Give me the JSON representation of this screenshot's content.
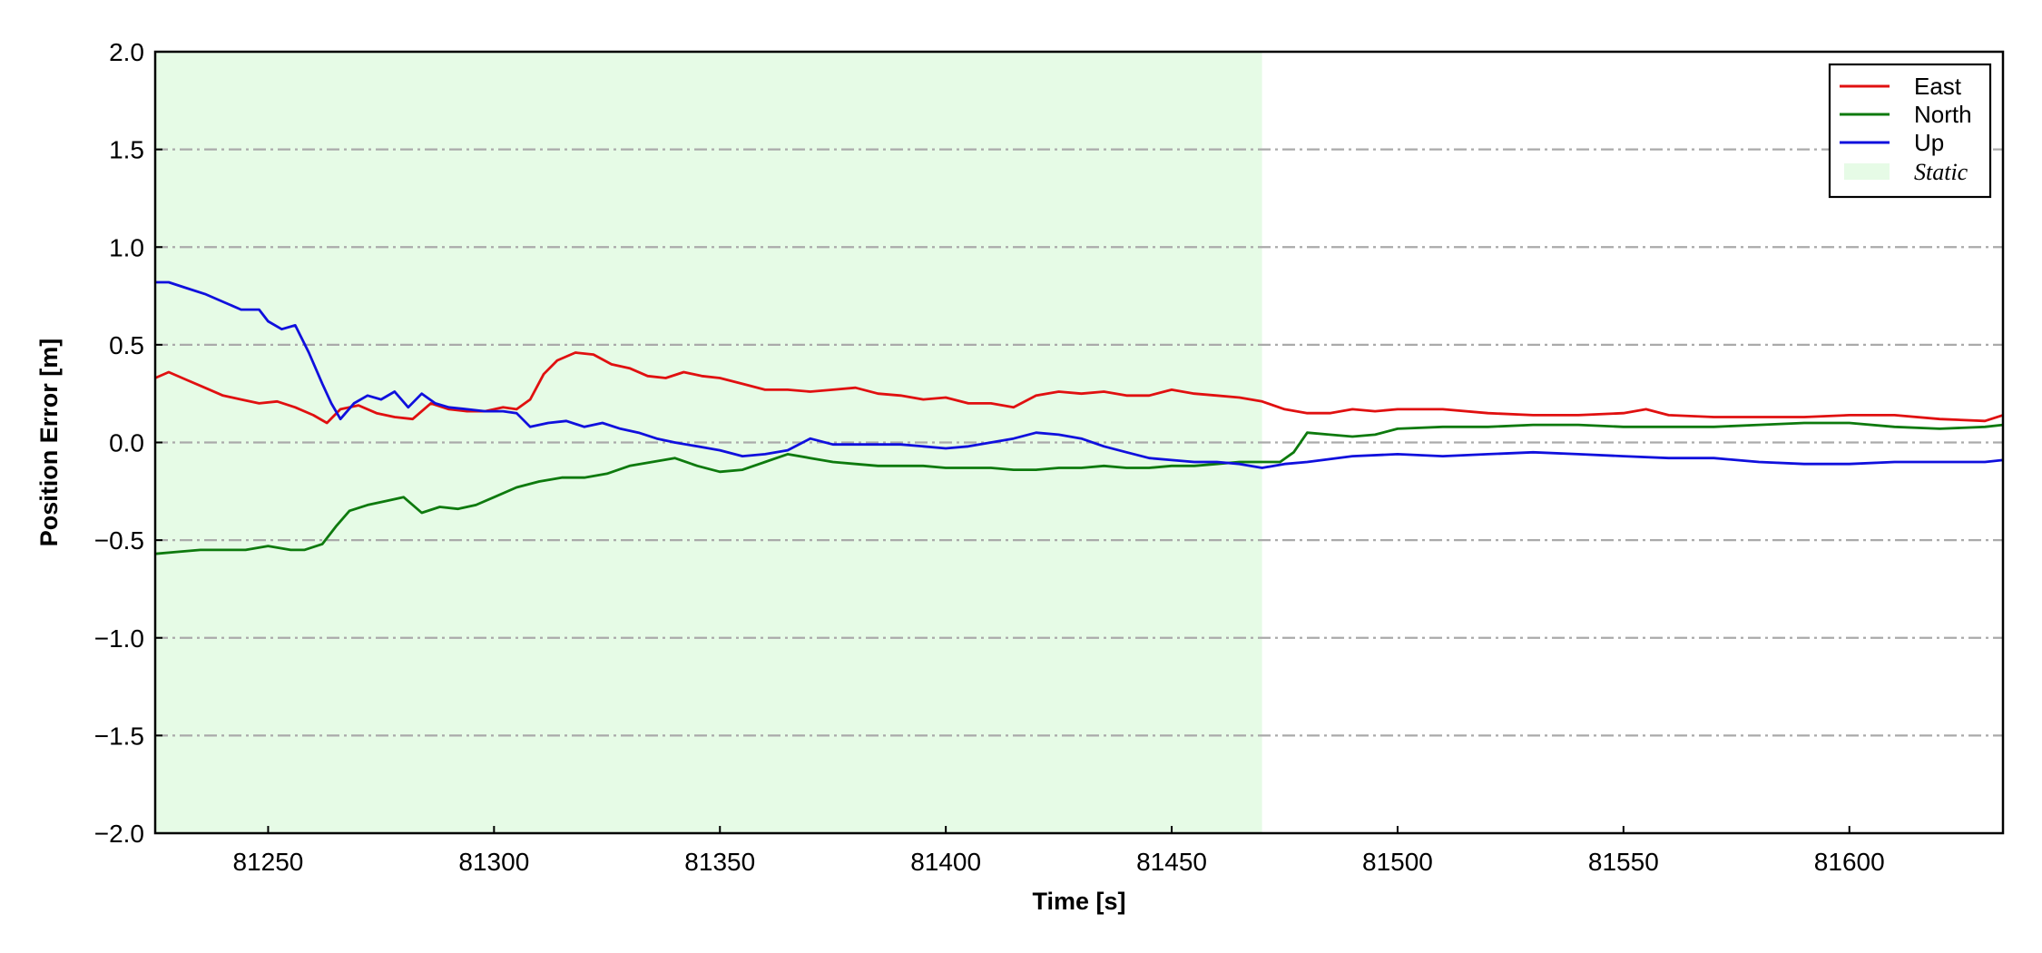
{
  "chart_data": {
    "type": "line",
    "xlabel": "Time [s]",
    "ylabel": "Position Error [m]",
    "xlim": [
      81225,
      81634
    ],
    "ylim": [
      -2.0,
      2.0
    ],
    "x_ticks": [
      81250,
      81300,
      81350,
      81400,
      81450,
      81500,
      81550,
      81600
    ],
    "y_ticks": [
      -2.0,
      -1.5,
      -1.0,
      -0.5,
      0.0,
      0.5,
      1.0,
      1.5,
      2.0
    ],
    "y_tick_labels": [
      "−2.0",
      "−1.5",
      "−1.0",
      "−0.5",
      "0.0",
      "0.5",
      "1.0",
      "1.5",
      "2.0"
    ],
    "grid": "horizontal dash-dot",
    "legend_position": "top-right",
    "static_region": {
      "label": "Static",
      "x_start": 81225,
      "x_end": 81470,
      "color": "#e6fbe6"
    },
    "series": [
      {
        "name": "East",
        "color": "#e01010",
        "x": [
          81225,
          81228,
          81232,
          81236,
          81240,
          81244,
          81248,
          81252,
          81256,
          81260,
          81263,
          81266,
          81270,
          81274,
          81278,
          81282,
          81286,
          81290,
          81294,
          81298,
          81302,
          81305,
          81308,
          81311,
          81314,
          81318,
          81322,
          81326,
          81330,
          81334,
          81338,
          81342,
          81346,
          81350,
          81355,
          81360,
          81365,
          81370,
          81375,
          81380,
          81385,
          81390,
          81395,
          81400,
          81405,
          81410,
          81415,
          81420,
          81425,
          81430,
          81435,
          81440,
          81445,
          81450,
          81455,
          81460,
          81465,
          81470,
          81475,
          81480,
          81485,
          81490,
          81495,
          81500,
          81510,
          81520,
          81530,
          81540,
          81550,
          81555,
          81560,
          81570,
          81580,
          81590,
          81600,
          81610,
          81620,
          81630,
          81634
        ],
        "y": [
          0.33,
          0.36,
          0.32,
          0.28,
          0.24,
          0.22,
          0.2,
          0.21,
          0.18,
          0.14,
          0.1,
          0.17,
          0.19,
          0.15,
          0.13,
          0.12,
          0.2,
          0.17,
          0.16,
          0.16,
          0.18,
          0.17,
          0.22,
          0.35,
          0.42,
          0.46,
          0.45,
          0.4,
          0.38,
          0.34,
          0.33,
          0.36,
          0.34,
          0.33,
          0.3,
          0.27,
          0.27,
          0.26,
          0.27,
          0.28,
          0.25,
          0.24,
          0.22,
          0.23,
          0.2,
          0.2,
          0.18,
          0.24,
          0.26,
          0.25,
          0.26,
          0.24,
          0.24,
          0.27,
          0.25,
          0.24,
          0.23,
          0.21,
          0.17,
          0.15,
          0.15,
          0.17,
          0.16,
          0.17,
          0.17,
          0.15,
          0.14,
          0.14,
          0.15,
          0.17,
          0.14,
          0.13,
          0.13,
          0.13,
          0.14,
          0.14,
          0.12,
          0.11,
          0.14
        ]
      },
      {
        "name": "North",
        "color": "#0e7a0e",
        "x": [
          81225,
          81230,
          81235,
          81240,
          81245,
          81250,
          81255,
          81258,
          81262,
          81265,
          81268,
          81272,
          81276,
          81280,
          81284,
          81288,
          81292,
          81296,
          81300,
          81305,
          81310,
          81315,
          81320,
          81325,
          81330,
          81335,
          81340,
          81345,
          81350,
          81355,
          81360,
          81365,
          81370,
          81375,
          81380,
          81385,
          81390,
          81395,
          81400,
          81405,
          81410,
          81415,
          81420,
          81425,
          81430,
          81435,
          81440,
          81445,
          81450,
          81455,
          81460,
          81465,
          81470,
          81474,
          81477,
          81480,
          81485,
          81490,
          81495,
          81500,
          81510,
          81520,
          81530,
          81540,
          81550,
          81560,
          81570,
          81580,
          81590,
          81600,
          81610,
          81620,
          81630,
          81634
        ],
        "y": [
          -0.57,
          -0.56,
          -0.55,
          -0.55,
          -0.55,
          -0.53,
          -0.55,
          -0.55,
          -0.52,
          -0.43,
          -0.35,
          -0.32,
          -0.3,
          -0.28,
          -0.36,
          -0.33,
          -0.34,
          -0.32,
          -0.28,
          -0.23,
          -0.2,
          -0.18,
          -0.18,
          -0.16,
          -0.12,
          -0.1,
          -0.08,
          -0.12,
          -0.15,
          -0.14,
          -0.1,
          -0.06,
          -0.08,
          -0.1,
          -0.11,
          -0.12,
          -0.12,
          -0.12,
          -0.13,
          -0.13,
          -0.13,
          -0.14,
          -0.14,
          -0.13,
          -0.13,
          -0.12,
          -0.13,
          -0.13,
          -0.12,
          -0.12,
          -0.11,
          -0.1,
          -0.1,
          -0.1,
          -0.05,
          0.05,
          0.04,
          0.03,
          0.04,
          0.07,
          0.08,
          0.08,
          0.09,
          0.09,
          0.08,
          0.08,
          0.08,
          0.09,
          0.1,
          0.1,
          0.08,
          0.07,
          0.08,
          0.09
        ]
      },
      {
        "name": "Up",
        "color": "#1010dd",
        "x": [
          81225,
          81228,
          81232,
          81236,
          81240,
          81244,
          81248,
          81250,
          81253,
          81256,
          81259,
          81262,
          81264,
          81266,
          81269,
          81272,
          81275,
          81278,
          81281,
          81284,
          81287,
          81290,
          81294,
          81298,
          81302,
          81305,
          81308,
          81312,
          81316,
          81320,
          81324,
          81328,
          81332,
          81336,
          81340,
          81345,
          81350,
          81355,
          81360,
          81365,
          81370,
          81375,
          81380,
          81385,
          81390,
          81395,
          81400,
          81405,
          81410,
          81415,
          81420,
          81425,
          81430,
          81435,
          81440,
          81445,
          81450,
          81455,
          81460,
          81465,
          81470,
          81475,
          81480,
          81490,
          81500,
          81510,
          81520,
          81530,
          81540,
          81550,
          81560,
          81570,
          81580,
          81590,
          81600,
          81610,
          81620,
          81630,
          81634
        ],
        "y": [
          0.82,
          0.82,
          0.79,
          0.76,
          0.72,
          0.68,
          0.68,
          0.62,
          0.58,
          0.6,
          0.46,
          0.3,
          0.2,
          0.12,
          0.2,
          0.24,
          0.22,
          0.26,
          0.18,
          0.25,
          0.2,
          0.18,
          0.17,
          0.16,
          0.16,
          0.15,
          0.08,
          0.1,
          0.11,
          0.08,
          0.1,
          0.07,
          0.05,
          0.02,
          0.0,
          -0.02,
          -0.04,
          -0.07,
          -0.06,
          -0.04,
          0.02,
          -0.01,
          -0.01,
          -0.01,
          -0.01,
          -0.02,
          -0.03,
          -0.02,
          0.0,
          0.02,
          0.05,
          0.04,
          0.02,
          -0.02,
          -0.05,
          -0.08,
          -0.09,
          -0.1,
          -0.1,
          -0.11,
          -0.13,
          -0.11,
          -0.1,
          -0.07,
          -0.06,
          -0.07,
          -0.06,
          -0.05,
          -0.06,
          -0.07,
          -0.08,
          -0.08,
          -0.1,
          -0.11,
          -0.11,
          -0.1,
          -0.1,
          -0.1,
          -0.09
        ]
      }
    ]
  }
}
